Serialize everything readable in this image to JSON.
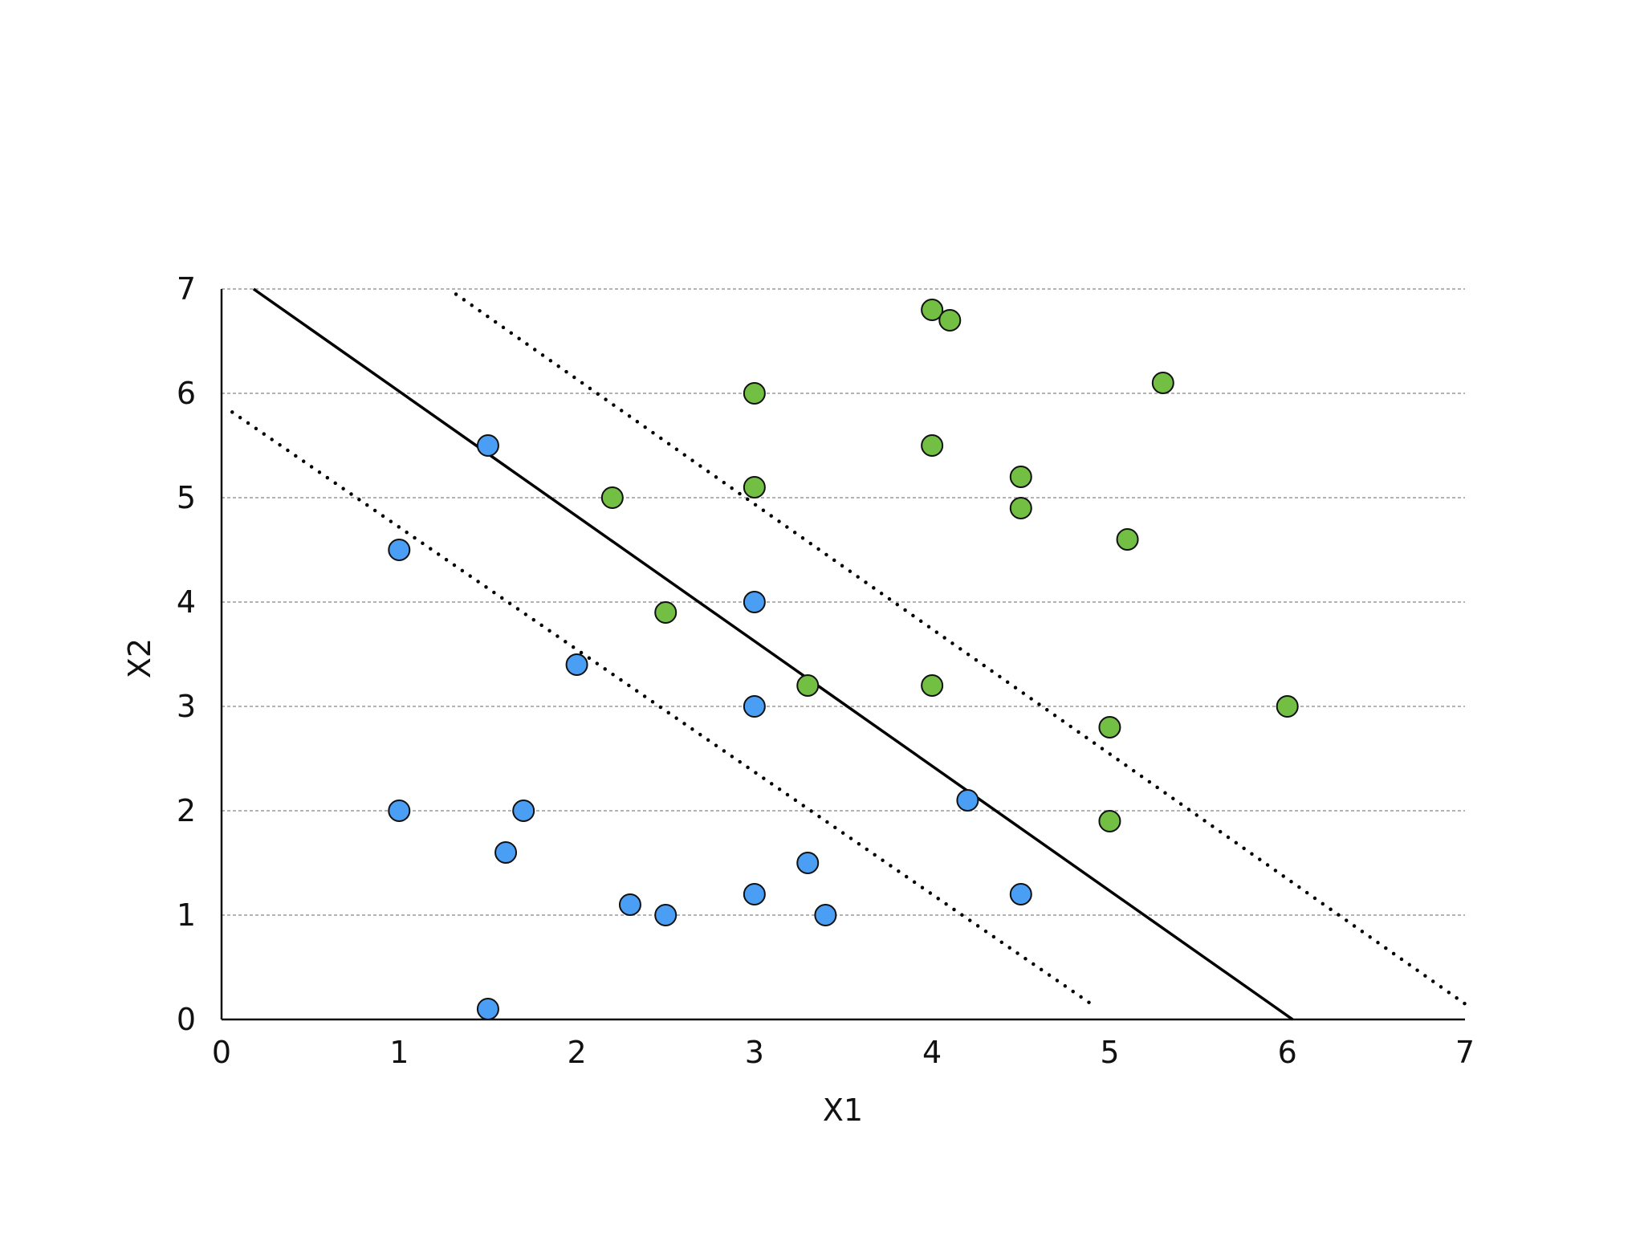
{
  "chart_data": {
    "type": "scatter",
    "title": "",
    "xlabel": "X1",
    "ylabel": "X2",
    "xlim": [
      0,
      7
    ],
    "ylim": [
      0,
      7
    ],
    "x_ticks": [
      "0",
      "1",
      "2",
      "3",
      "4",
      "5",
      "6",
      "7"
    ],
    "y_ticks": [
      "0",
      "1",
      "2",
      "3",
      "4",
      "5",
      "6",
      "7"
    ],
    "grid": "horizontal dashed",
    "legend": "none",
    "series": [
      {
        "color": "#4a9ff5",
        "points": [
          [
            1.5,
            5.5
          ],
          [
            1.0,
            4.5
          ],
          [
            3.0,
            4.0
          ],
          [
            2.0,
            3.4
          ],
          [
            3.0,
            3.0
          ],
          [
            1.0,
            2.0
          ],
          [
            1.7,
            2.0
          ],
          [
            1.6,
            1.6
          ],
          [
            2.3,
            1.1
          ],
          [
            2.5,
            1.0
          ],
          [
            3.0,
            1.2
          ],
          [
            3.3,
            1.5
          ],
          [
            3.4,
            1.0
          ],
          [
            4.2,
            2.1
          ],
          [
            4.5,
            1.2
          ],
          [
            1.5,
            0.1
          ]
        ]
      },
      {
        "color": "#72bf44",
        "points": [
          [
            4.0,
            6.8
          ],
          [
            4.1,
            6.7
          ],
          [
            3.0,
            6.0
          ],
          [
            5.3,
            6.1
          ],
          [
            4.0,
            5.5
          ],
          [
            2.2,
            5.0
          ],
          [
            3.0,
            5.1
          ],
          [
            4.5,
            5.2
          ],
          [
            4.5,
            4.9
          ],
          [
            5.1,
            4.6
          ],
          [
            2.5,
            3.9
          ],
          [
            3.3,
            3.2
          ],
          [
            4.0,
            3.2
          ],
          [
            6.0,
            3.0
          ],
          [
            5.0,
            2.8
          ],
          [
            5.0,
            1.9
          ]
        ]
      }
    ],
    "lines": [
      {
        "style": "solid",
        "points": [
          [
            0.18,
            7.0
          ],
          [
            6.03,
            0.0
          ]
        ]
      },
      {
        "style": "dotted",
        "points": [
          [
            1.32,
            6.95
          ],
          [
            7.0,
            0.15
          ]
        ]
      },
      {
        "style": "dotted",
        "points": [
          [
            0.06,
            5.82
          ],
          [
            4.92,
            0.12
          ]
        ]
      }
    ]
  }
}
